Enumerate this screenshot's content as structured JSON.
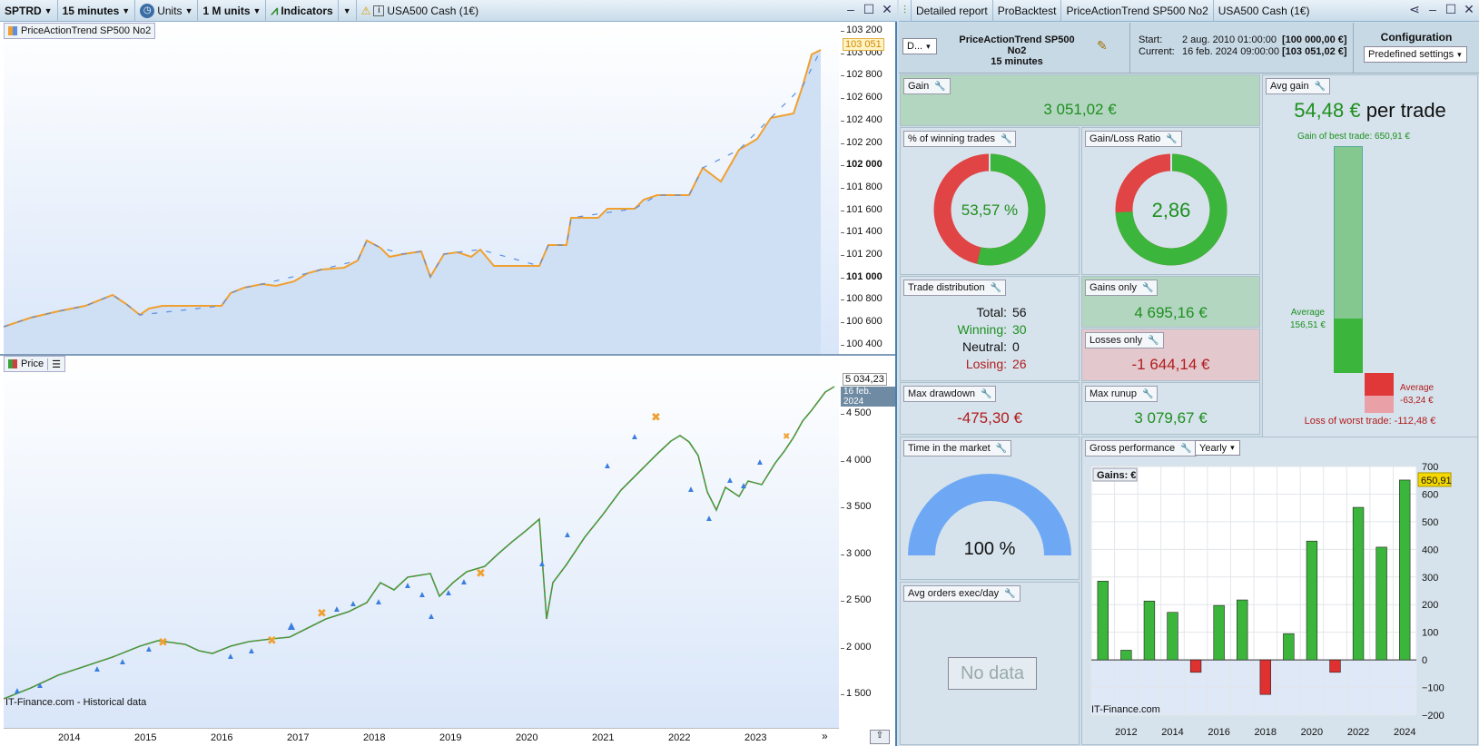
{
  "toolbar": {
    "ticker": "SPTRD",
    "timeframe": "15 minutes",
    "units": "Units",
    "units_count": "1 M units",
    "indicators": "Indicators",
    "instrument": "USA500 Cash (1€)"
  },
  "upper": {
    "label": "PriceActionTrend SP500 No2",
    "yticks": [
      "103 200",
      "103 000",
      "102 800",
      "102 600",
      "102 400",
      "102 200",
      "102 000",
      "101 800",
      "101 600",
      "101 400",
      "101 200",
      "101 000",
      "100 800",
      "100 600",
      "100 400"
    ],
    "current": "103 051"
  },
  "lower": {
    "label": "Price",
    "yticks": [
      "4 500",
      "4 000",
      "3 500",
      "3 000",
      "2 500",
      "2 000",
      "1 500"
    ],
    "current": "5 034,23",
    "current_date": "16 feb. 2024",
    "credit": "IT-Finance.com - Historical data",
    "markers": [
      "2",
      "4",
      "2",
      "3",
      "5",
      "4",
      "3",
      "2",
      "8",
      "3",
      "6",
      "6",
      "4",
      "5",
      "2",
      "2",
      "2",
      "3",
      "5",
      "6",
      "2",
      "4",
      "2",
      "2"
    ]
  },
  "xaxis": [
    "2014",
    "2015",
    "2016",
    "2017",
    "2018",
    "2019",
    "2020",
    "2021",
    "2022",
    "2023"
  ],
  "right_tabs": [
    "Detailed report",
    "ProBacktest",
    "PriceActionTrend SP500 No2",
    "USA500 Cash (1€)"
  ],
  "config": {
    "dropdown": "D...",
    "system": "PriceActionTrend SP500 No2",
    "tf": "15 minutes",
    "start_label": "Start:",
    "start": "2 aug. 2010 01:00:00",
    "start_val": "[100 000,00 €]",
    "current_label": "Current:",
    "current": "16 feb. 2024 09:00:00",
    "current_val": "[103 051,02 €]",
    "title": "Configuration",
    "preset": "Predefined settings"
  },
  "gain": {
    "title": "Gain",
    "value": "3 051,02 €"
  },
  "avg_gain": {
    "title": "Avg gain",
    "value": "54,48 €",
    "suffix": "per trade",
    "best": "Gain of best trade: 650,91 €",
    "avg_label": "Average",
    "avg_val": "156,51 €",
    "avg_loss_label": "Average",
    "avg_loss_val": "-63,24 €",
    "worst": "Loss of worst trade: -112,48 €"
  },
  "winning": {
    "title": "% of winning trades",
    "value": "53,57 %",
    "pct": 53.57
  },
  "ratio": {
    "title": "Gain/Loss Ratio",
    "value": "2,86",
    "win_share": 0.741
  },
  "dist": {
    "title": "Trade distribution",
    "total_l": "Total:",
    "total": "56",
    "win_l": "Winning:",
    "win": "30",
    "neu_l": "Neutral:",
    "neu": "0",
    "los_l": "Losing:",
    "los": "26"
  },
  "gains_only": {
    "title": "Gains only",
    "value": "4 695,16 €"
  },
  "losses_only": {
    "title": "Losses only",
    "value": "-1 644,14 €"
  },
  "drawdown": {
    "title": "Max drawdown",
    "value": "-475,30 €"
  },
  "runup": {
    "title": "Max runup",
    "value": "3 079,67 €"
  },
  "time_market": {
    "title": "Time in the market",
    "value": "100 %"
  },
  "avg_orders": {
    "title": "Avg orders exec/day",
    "value": "No data"
  },
  "gross": {
    "title": "Gross performance",
    "period": "Yearly",
    "legend": "Gains: €",
    "credit": "IT-Finance.com",
    "xticks": [
      "2012",
      "2014",
      "2016",
      "2018",
      "2020",
      "2022",
      "2024"
    ],
    "yticks": [
      "700",
      "600",
      "500",
      "400",
      "300",
      "200",
      "100",
      "0",
      "−100",
      "−200"
    ],
    "hi": "650,91"
  },
  "chart_data": {
    "type": "bar",
    "categories": [
      "2011",
      "2012",
      "2013",
      "2014",
      "2015",
      "2016",
      "2017",
      "2018",
      "2019",
      "2020",
      "2021",
      "2022",
      "2023",
      "2024"
    ],
    "values": [
      285,
      35,
      213,
      172,
      -45,
      197,
      217,
      -125,
      95,
      430,
      -45,
      552,
      408,
      650.91
    ],
    "ylim": [
      -200,
      700
    ]
  }
}
